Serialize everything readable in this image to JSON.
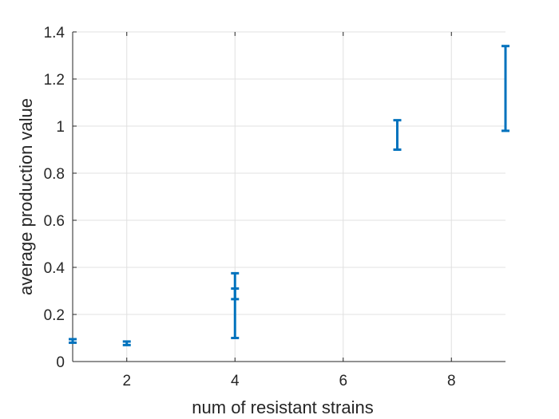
{
  "chart_data": {
    "type": "errorbar",
    "title": "",
    "xlabel": "num of resistant strains",
    "ylabel": "average production value",
    "xlim": [
      1,
      9
    ],
    "ylim": [
      0,
      1.4
    ],
    "xticks": [
      2,
      4,
      6,
      8
    ],
    "yticks": [
      0,
      0.2,
      0.4,
      0.6,
      0.8,
      1,
      1.2,
      1.4
    ],
    "xtick_labels": [
      "2",
      "4",
      "6",
      "8"
    ],
    "ytick_labels": [
      "0",
      "0.2",
      "0.4",
      "0.6",
      "0.8",
      "1",
      "1.2",
      "1.4"
    ],
    "grid": true,
    "color": "#0072BD",
    "series": [
      {
        "points": [
          {
            "x": 1,
            "low": 0.08,
            "high": 0.095
          },
          {
            "x": 2,
            "low": 0.07,
            "high": 0.085
          },
          {
            "x": 4,
            "low": 0.1,
            "high": 0.31
          },
          {
            "x": 4,
            "low": 0.265,
            "high": 0.375
          },
          {
            "x": 7,
            "low": 0.9,
            "high": 1.025
          },
          {
            "x": 9,
            "low": 0.98,
            "high": 1.34
          }
        ]
      }
    ]
  }
}
